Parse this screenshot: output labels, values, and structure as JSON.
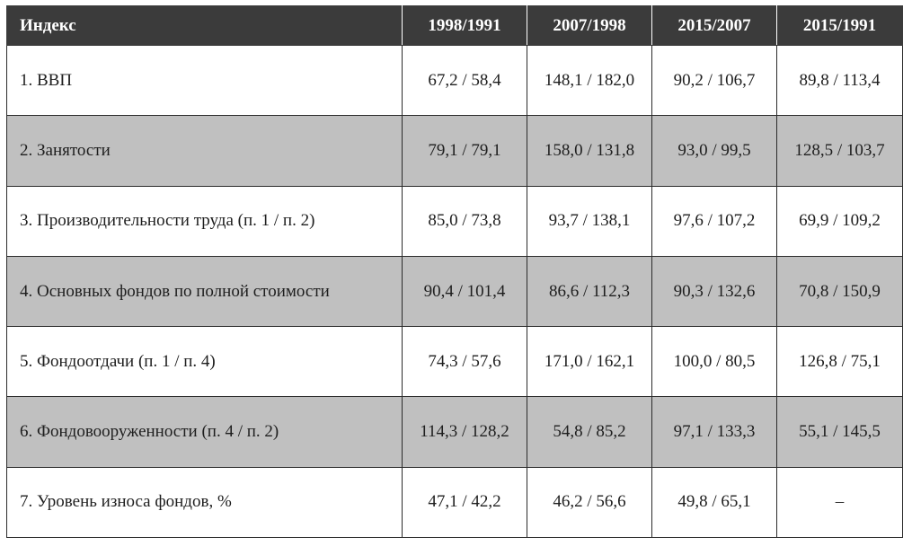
{
  "table": {
    "headers": [
      "Индекс",
      "1998/1991",
      "2007/1998",
      "2015/2007",
      "2015/1991"
    ],
    "rows": [
      {
        "label": "1. ВВП",
        "values": [
          "67,2 / 58,4",
          "148,1 / 182,0",
          "90,2 / 106,7",
          "89,8 / 113,4"
        ],
        "shaded": false
      },
      {
        "label": "2. Занятости",
        "values": [
          "79,1 / 79,1",
          "158,0 / 131,8",
          "93,0 / 99,5",
          "128,5 / 103,7"
        ],
        "shaded": true
      },
      {
        "label": "3. Производительности труда (п. 1 / п. 2)",
        "values": [
          "85,0 / 73,8",
          "93,7 / 138,1",
          "97,6 / 107,2",
          "69,9 / 109,2"
        ],
        "shaded": false
      },
      {
        "label": "4. Основных фондов по полной стоимости",
        "values": [
          "90,4 / 101,4",
          "86,6 / 112,3",
          "90,3 / 132,6",
          "70,8 / 150,9"
        ],
        "shaded": true
      },
      {
        "label": "5. Фондоотдачи (п. 1 / п. 4)",
        "values": [
          "74,3 / 57,6",
          "171,0 / 162,1",
          "100,0 / 80,5",
          "126,8 / 75,1"
        ],
        "shaded": false
      },
      {
        "label": "6. Фондовооруженности (п. 4 / п. 2)",
        "values": [
          "114,3 / 128,2",
          "54,8 / 85,2",
          "97,1 / 133,3",
          "55,1 / 145,5"
        ],
        "shaded": true
      },
      {
        "label": "7. Уровень износа фондов, %",
        "values": [
          "47,1 / 42,2",
          "46,2 / 56,6",
          "49,8 / 65,1",
          "–"
        ],
        "shaded": false
      }
    ]
  },
  "colors": {
    "header_bg": "#3b3b3b",
    "header_text": "#ffffff",
    "shaded_row": "#c0c0c0",
    "plain_row": "#ffffff",
    "border": "#2b2b2b"
  }
}
